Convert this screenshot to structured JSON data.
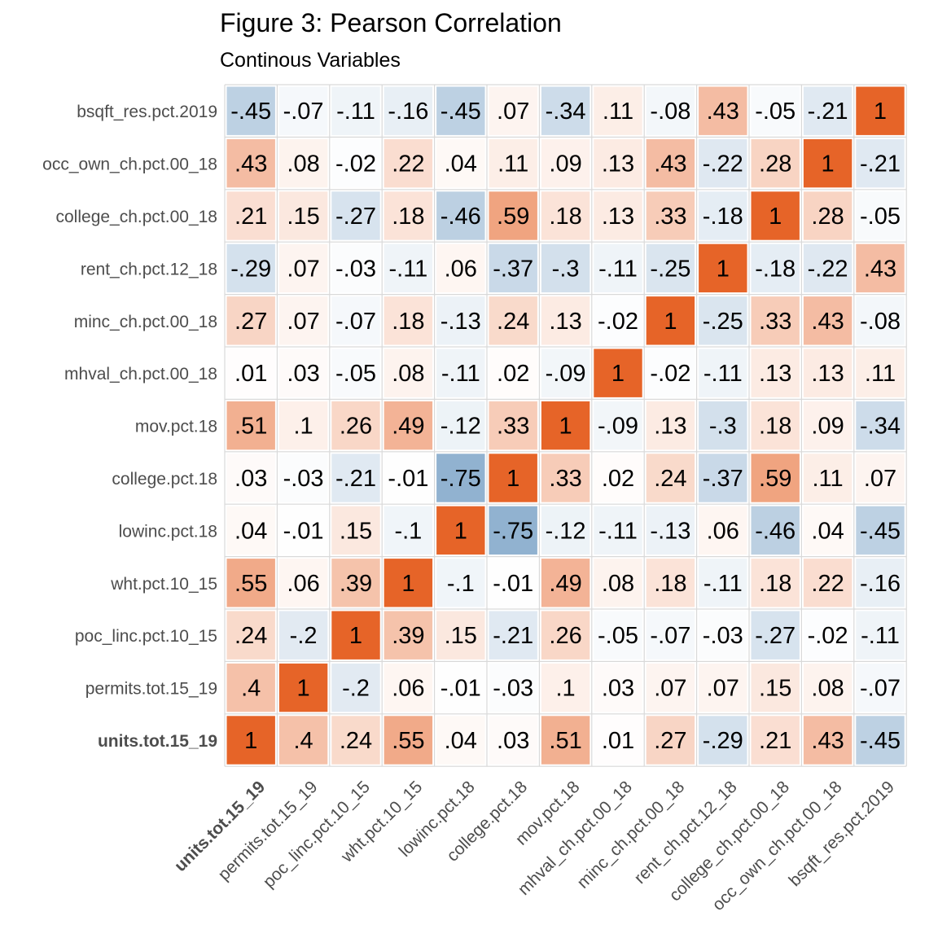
{
  "chart_data": {
    "type": "heatmap",
    "title": "Figure 3: Pearson Correlation",
    "subtitle": "Continous Variables",
    "bold_variable": "units.tot.15_19",
    "variables": [
      "units.tot.15_19",
      "permits.tot.15_19",
      "poc_linc.pct.10_15",
      "wht.pct.10_15",
      "lowinc.pct.18",
      "college.pct.18",
      "mov.pct.18",
      "mhval_ch.pct.00_18",
      "minc_ch.pct.00_18",
      "rent_ch.pct.12_18",
      "college_ch.pct.00_18",
      "occ_own_ch.pct.00_18",
      "bsqft_res.pct.2019"
    ],
    "matrix": [
      [
        1,
        0.4,
        0.24,
        0.55,
        0.04,
        0.03,
        0.51,
        0.01,
        0.27,
        -0.29,
        0.21,
        0.43,
        -0.45
      ],
      [
        0.4,
        1,
        -0.2,
        0.06,
        -0.01,
        -0.03,
        0.1,
        0.03,
        0.07,
        0.07,
        0.15,
        0.08,
        -0.07
      ],
      [
        0.24,
        -0.2,
        1,
        0.39,
        0.15,
        -0.21,
        0.26,
        -0.05,
        -0.07,
        -0.03,
        -0.27,
        -0.02,
        -0.11
      ],
      [
        0.55,
        0.06,
        0.39,
        1,
        -0.1,
        -0.01,
        0.49,
        0.08,
        0.18,
        -0.11,
        0.18,
        0.22,
        -0.16
      ],
      [
        0.04,
        -0.01,
        0.15,
        -0.1,
        1,
        -0.75,
        -0.12,
        -0.11,
        -0.13,
        0.06,
        -0.46,
        0.04,
        -0.45
      ],
      [
        0.03,
        -0.03,
        -0.21,
        -0.01,
        -0.75,
        1,
        0.33,
        0.02,
        0.24,
        -0.37,
        0.59,
        0.11,
        0.07
      ],
      [
        0.51,
        0.1,
        0.26,
        0.49,
        -0.12,
        0.33,
        1,
        -0.09,
        0.13,
        -0.3,
        0.18,
        0.09,
        -0.34
      ],
      [
        0.01,
        0.03,
        -0.05,
        0.08,
        -0.11,
        0.02,
        -0.09,
        1,
        -0.02,
        -0.11,
        0.13,
        0.13,
        0.11
      ],
      [
        0.27,
        0.07,
        -0.07,
        0.18,
        -0.13,
        0.24,
        0.13,
        -0.02,
        1,
        -0.25,
        0.33,
        0.43,
        -0.08
      ],
      [
        -0.29,
        0.07,
        -0.03,
        -0.11,
        0.06,
        -0.37,
        -0.3,
        -0.11,
        -0.25,
        1,
        -0.18,
        -0.22,
        0.43
      ],
      [
        0.21,
        0.15,
        -0.27,
        0.18,
        -0.46,
        0.59,
        0.18,
        0.13,
        0.33,
        -0.18,
        1,
        0.28,
        -0.05
      ],
      [
        0.43,
        0.08,
        -0.02,
        0.22,
        0.04,
        0.11,
        0.09,
        0.13,
        0.43,
        -0.22,
        0.28,
        1,
        -0.21
      ],
      [
        -0.45,
        -0.07,
        -0.11,
        -0.16,
        -0.45,
        0.07,
        -0.34,
        0.11,
        -0.08,
        0.43,
        -0.05,
        -0.21,
        1
      ]
    ],
    "colors": {
      "positive": "#e66428",
      "negative": "#91b2d0",
      "neutral": "#ffffff",
      "grid": "#d9d9d9",
      "axis_text": "#4d4d4d"
    }
  }
}
